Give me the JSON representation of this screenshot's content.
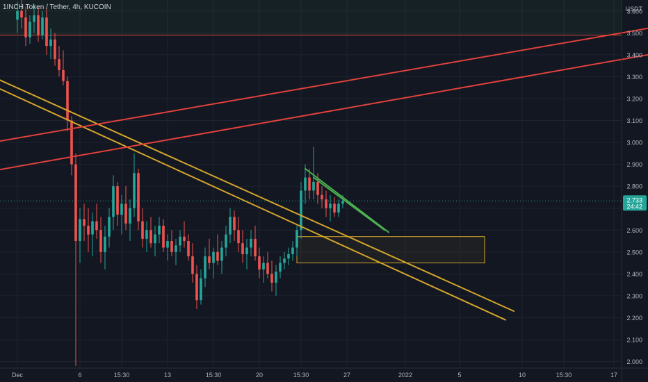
{
  "header": {
    "title": "1INCH Token / Tether, 4h, KUCOIN"
  },
  "colors": {
    "background": "#131722",
    "grid": "#1f2330",
    "up": "#26a69a",
    "down": "#ef5350",
    "trendline_yellow": "#d4a52a",
    "trendline_red": "#e0413b",
    "wedge_green": "#4caf50",
    "resistance_line": "#d9453d",
    "price_badge": "#26a69a",
    "axis_text": "#b2b5be"
  },
  "chart_data": {
    "type": "candlestick",
    "symbol": "1INCH Token / Tether",
    "timeframe": "4h",
    "exchange": "KUCOIN",
    "currency": "USDT",
    "ylim": [
      1.97,
      3.65
    ],
    "y_ticks": [
      2.0,
      2.1,
      2.2,
      2.3,
      2.4,
      2.5,
      2.6,
      2.7,
      2.8,
      2.9,
      3.0,
      3.1,
      3.2,
      3.3,
      3.4,
      3.5,
      3.6
    ],
    "y_tick_labels": [
      "2.000",
      "2.100",
      "2.200",
      "2.300",
      "2.400",
      "2.500",
      "2.600",
      "2.700",
      "2.800",
      "2.900",
      "3.000",
      "3.100",
      "3.200",
      "3.300",
      "3.400",
      "3.500",
      "3.600"
    ],
    "x_tick_labels": [
      "Dec",
      "6",
      "15:30",
      "13",
      "15:30",
      "20",
      "15:30",
      "27",
      "2022",
      "5",
      "10",
      "15:30",
      "17"
    ],
    "x_tick_index": [
      0,
      15,
      25,
      36,
      47,
      58,
      68,
      79,
      93,
      106,
      121,
      131,
      143
    ],
    "last_price": 2.733,
    "countdown": "24:42",
    "candles": [
      [
        3.56,
        3.64,
        3.5,
        3.6
      ],
      [
        3.6,
        3.65,
        3.52,
        3.57
      ],
      [
        3.57,
        3.62,
        3.44,
        3.48
      ],
      [
        3.48,
        3.58,
        3.45,
        3.55
      ],
      [
        3.55,
        3.63,
        3.5,
        3.58
      ],
      [
        3.58,
        3.62,
        3.46,
        3.49
      ],
      [
        3.49,
        3.6,
        3.47,
        3.57
      ],
      [
        3.57,
        3.61,
        3.4,
        3.44
      ],
      [
        3.44,
        3.52,
        3.38,
        3.47
      ],
      [
        3.47,
        3.5,
        3.35,
        3.38
      ],
      [
        3.38,
        3.44,
        3.3,
        3.33
      ],
      [
        3.33,
        3.42,
        3.26,
        3.28
      ],
      [
        3.28,
        3.3,
        3.05,
        3.1
      ],
      [
        3.1,
        3.12,
        2.85,
        2.9
      ],
      [
        2.9,
        2.95,
        1.98,
        2.55
      ],
      [
        2.55,
        2.7,
        2.45,
        2.65
      ],
      [
        2.65,
        2.72,
        2.55,
        2.62
      ],
      [
        2.62,
        2.7,
        2.5,
        2.58
      ],
      [
        2.58,
        2.68,
        2.48,
        2.64
      ],
      [
        2.64,
        2.72,
        2.56,
        2.6
      ],
      [
        2.6,
        2.66,
        2.45,
        2.5
      ],
      [
        2.5,
        2.62,
        2.42,
        2.57
      ],
      [
        2.57,
        2.7,
        2.52,
        2.66
      ],
      [
        2.66,
        2.85,
        2.6,
        2.8
      ],
      [
        2.8,
        2.82,
        2.62,
        2.67
      ],
      [
        2.67,
        2.76,
        2.58,
        2.72
      ],
      [
        2.72,
        2.8,
        2.6,
        2.63
      ],
      [
        2.63,
        2.74,
        2.55,
        2.7
      ],
      [
        2.7,
        2.95,
        2.66,
        2.86
      ],
      [
        2.86,
        2.88,
        2.6,
        2.64
      ],
      [
        2.64,
        2.7,
        2.52,
        2.56
      ],
      [
        2.56,
        2.64,
        2.5,
        2.6
      ],
      [
        2.6,
        2.66,
        2.52,
        2.54
      ],
      [
        2.54,
        2.62,
        2.48,
        2.58
      ],
      [
        2.58,
        2.66,
        2.54,
        2.62
      ],
      [
        2.62,
        2.65,
        2.5,
        2.52
      ],
      [
        2.52,
        2.58,
        2.46,
        2.55
      ],
      [
        2.55,
        2.6,
        2.48,
        2.5
      ],
      [
        2.5,
        2.56,
        2.44,
        2.53
      ],
      [
        2.53,
        2.6,
        2.5,
        2.57
      ],
      [
        2.57,
        2.64,
        2.52,
        2.55
      ],
      [
        2.55,
        2.58,
        2.46,
        2.48
      ],
      [
        2.48,
        2.54,
        2.36,
        2.4
      ],
      [
        2.4,
        2.44,
        2.24,
        2.28
      ],
      [
        2.28,
        2.42,
        2.26,
        2.38
      ],
      [
        2.38,
        2.52,
        2.34,
        2.48
      ],
      [
        2.48,
        2.56,
        2.42,
        2.45
      ],
      [
        2.45,
        2.52,
        2.38,
        2.5
      ],
      [
        2.5,
        2.58,
        2.44,
        2.46
      ],
      [
        2.46,
        2.55,
        2.4,
        2.52
      ],
      [
        2.52,
        2.62,
        2.48,
        2.58
      ],
      [
        2.58,
        2.7,
        2.54,
        2.66
      ],
      [
        2.66,
        2.69,
        2.55,
        2.6
      ],
      [
        2.6,
        2.66,
        2.5,
        2.54
      ],
      [
        2.54,
        2.6,
        2.45,
        2.49
      ],
      [
        2.49,
        2.56,
        2.42,
        2.52
      ],
      [
        2.52,
        2.6,
        2.48,
        2.56
      ],
      [
        2.56,
        2.62,
        2.46,
        2.48
      ],
      [
        2.48,
        2.52,
        2.38,
        2.42
      ],
      [
        2.42,
        2.48,
        2.36,
        2.45
      ],
      [
        2.45,
        2.5,
        2.38,
        2.4
      ],
      [
        2.4,
        2.46,
        2.32,
        2.36
      ],
      [
        2.36,
        2.44,
        2.3,
        2.41
      ],
      [
        2.41,
        2.48,
        2.38,
        2.45
      ],
      [
        2.45,
        2.5,
        2.42,
        2.47
      ],
      [
        2.47,
        2.52,
        2.44,
        2.49
      ],
      [
        2.49,
        2.55,
        2.46,
        2.52
      ],
      [
        2.52,
        2.62,
        2.48,
        2.6
      ],
      [
        2.6,
        2.82,
        2.56,
        2.78
      ],
      [
        2.78,
        2.9,
        2.72,
        2.84
      ],
      [
        2.84,
        2.88,
        2.74,
        2.78
      ],
      [
        2.78,
        2.98,
        2.74,
        2.82
      ],
      [
        2.82,
        2.86,
        2.72,
        2.76
      ],
      [
        2.76,
        2.8,
        2.7,
        2.74
      ],
      [
        2.74,
        2.78,
        2.66,
        2.7
      ],
      [
        2.7,
        2.76,
        2.64,
        2.72
      ],
      [
        2.72,
        2.75,
        2.66,
        2.68
      ],
      [
        2.68,
        2.74,
        2.66,
        2.72
      ],
      [
        2.72,
        2.76,
        2.7,
        2.733
      ]
    ],
    "annotations": [
      {
        "type": "trendline",
        "color": "yellow",
        "from": [
          -6,
          3.3
        ],
        "to": [
          119,
          2.23
        ]
      },
      {
        "type": "trendline",
        "color": "yellow",
        "from": [
          -6,
          3.26
        ],
        "to": [
          117,
          2.19
        ]
      },
      {
        "type": "trendline",
        "color": "red",
        "from": [
          -6,
          3.0
        ],
        "to": [
          163,
          3.56
        ]
      },
      {
        "type": "trendline",
        "color": "red",
        "from": [
          -6,
          2.87
        ],
        "to": [
          163,
          3.44
        ]
      },
      {
        "type": "trendline",
        "color": "green",
        "from": [
          69,
          2.88
        ],
        "to": [
          89,
          2.59
        ]
      },
      {
        "type": "trendline",
        "color": "green",
        "from": [
          71,
          2.84
        ],
        "to": [
          88,
          2.6
        ]
      },
      {
        "type": "horizontal",
        "color": "red",
        "value": 3.49
      },
      {
        "type": "box",
        "x_from": 67,
        "x_to": 112,
        "y_from": 2.45,
        "y_to": 2.57
      },
      {
        "type": "box",
        "x_from": -6,
        "x_to": 163,
        "y_from": 3.49,
        "y_to": 3.65
      }
    ]
  }
}
